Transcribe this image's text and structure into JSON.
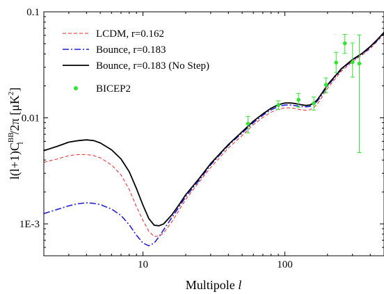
{
  "chart_data": {
    "type": "line",
    "title": "",
    "xlabel": "Multipole l",
    "xlabel_text": "Multipole ",
    "xlabel_var": "l",
    "ylabel": "l(l+1)C_l^BB/2π [μK^2]",
    "ylabel_parts": {
      "prefix": "l(l+1)C",
      "sup": "BB",
      "sub": "l",
      "mid": "/2π [μK",
      "sup2": "2",
      "suffix": "]"
    },
    "xscale": "log",
    "yscale": "log",
    "xlim": [
      2,
      500
    ],
    "ylim": [
      0.0005,
      0.1
    ],
    "x_ticks": [
      {
        "value": 10,
        "label": "10"
      },
      {
        "value": 100,
        "label": "100"
      }
    ],
    "y_ticks": [
      {
        "value": 0.001,
        "label": "1E-3"
      },
      {
        "value": 0.01,
        "label": "0.01"
      },
      {
        "value": 0.1,
        "label": "0.1"
      }
    ],
    "grid": false,
    "legend_position": "top-left",
    "series": [
      {
        "name": "LCDM, r=0.162",
        "style": "dashed",
        "color": "#e8262a",
        "x": [
          2,
          2.5,
          3,
          3.5,
          4,
          4.5,
          5,
          6,
          7,
          8,
          9,
          10,
          11,
          12,
          13,
          14,
          16,
          18,
          20,
          25,
          30,
          40,
          50,
          60,
          70,
          80,
          90,
          100,
          110,
          120,
          130,
          140,
          150,
          160,
          170,
          180,
          200,
          250,
          300,
          350,
          400,
          450,
          500
        ],
        "y": [
          0.0038,
          0.0041,
          0.0044,
          0.0045,
          0.0045,
          0.0044,
          0.0042,
          0.0036,
          0.0029,
          0.0021,
          0.00145,
          0.00108,
          0.00085,
          0.00076,
          0.00077,
          0.00082,
          0.00105,
          0.00135,
          0.0017,
          0.0025,
          0.0034,
          0.0052,
          0.0068,
          0.0086,
          0.0101,
          0.0113,
          0.0121,
          0.0124,
          0.0124,
          0.0122,
          0.0119,
          0.0118,
          0.0119,
          0.0125,
          0.0136,
          0.0152,
          0.019,
          0.0275,
          0.034,
          0.039,
          0.045,
          0.053,
          0.062
        ]
      },
      {
        "name": "Bounce, r=0.183",
        "style": "dashdot",
        "color": "#1f1fd9",
        "x": [
          2,
          2.5,
          3,
          3.5,
          4,
          4.5,
          5,
          6,
          7,
          8,
          9,
          10,
          11,
          12,
          13,
          14,
          16,
          18,
          20,
          25,
          30,
          40,
          50,
          60,
          70,
          80,
          90,
          100,
          110,
          120,
          130,
          140,
          150,
          160,
          170,
          180,
          200,
          250,
          300,
          350,
          400,
          450,
          500
        ],
        "y": [
          0.00125,
          0.00137,
          0.00148,
          0.00155,
          0.00158,
          0.00156,
          0.00152,
          0.00138,
          0.0012,
          0.00098,
          0.00078,
          0.00066,
          0.00062,
          0.00066,
          0.00076,
          0.00088,
          0.00115,
          0.00145,
          0.0018,
          0.0026,
          0.0036,
          0.0055,
          0.0072,
          0.009,
          0.0106,
          0.0119,
          0.0128,
          0.0132,
          0.0132,
          0.013,
          0.0128,
          0.0127,
          0.0128,
          0.0134,
          0.0145,
          0.0161,
          0.02,
          0.0285,
          0.035,
          0.04,
          0.046,
          0.054,
          0.063
        ]
      },
      {
        "name": "Bounce, r=0.183 (No Step)",
        "style": "solid",
        "color": "#000000",
        "x": [
          2,
          2.5,
          3,
          3.5,
          4,
          4.5,
          5,
          6,
          7,
          8,
          9,
          10,
          11,
          12,
          13,
          14,
          16,
          18,
          20,
          25,
          30,
          40,
          50,
          60,
          70,
          80,
          90,
          100,
          110,
          120,
          130,
          140,
          150,
          160,
          170,
          180,
          200,
          250,
          300,
          350,
          400,
          450,
          500
        ],
        "y": [
          0.0049,
          0.0054,
          0.0059,
          0.0061,
          0.0062,
          0.0061,
          0.0058,
          0.005,
          0.0041,
          0.0031,
          0.00215,
          0.0015,
          0.00112,
          0.00097,
          0.00096,
          0.001,
          0.00122,
          0.00152,
          0.00188,
          0.0027,
          0.0037,
          0.0056,
          0.0074,
          0.0093,
          0.0109,
          0.0123,
          0.0133,
          0.0138,
          0.0138,
          0.0136,
          0.0133,
          0.0131,
          0.0132,
          0.0138,
          0.0149,
          0.0166,
          0.0205,
          0.029,
          0.0355,
          0.0405,
          0.047,
          0.055,
          0.064
        ]
      }
    ],
    "points": {
      "name": "BICEP2",
      "color": "#2ee62e",
      "x": [
        55,
        90,
        125,
        160,
        195,
        230,
        265,
        300,
        335
      ],
      "y": [
        0.0088,
        0.0132,
        0.0148,
        0.0137,
        0.0205,
        0.0332,
        0.0505,
        0.0335,
        0.0325
      ],
      "err_low": [
        0.0072,
        0.012,
        0.0126,
        0.0118,
        0.0172,
        0.0268,
        0.0405,
        0.0242,
        0.0047
      ],
      "err_high": [
        0.0103,
        0.0145,
        0.017,
        0.0157,
        0.0238,
        0.0415,
        0.0612,
        0.0508,
        0.0605
      ]
    }
  }
}
